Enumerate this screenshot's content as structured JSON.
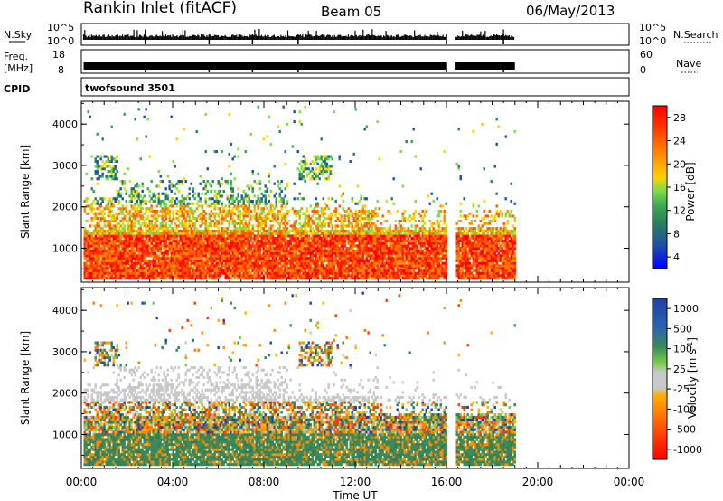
{
  "header": {
    "station": "Rankin Inlet (fitACF)",
    "beam": "Beam 05",
    "date": "06/May/2013"
  },
  "top_panels": {
    "nsky_label": "N.Sky",
    "nsky_ticks": [
      "10^5",
      "10^0"
    ],
    "nsearch_label": "N.Search",
    "nsearch_ticks": [
      "10^5",
      "10^0"
    ],
    "freq_label_1": "Freq.",
    "freq_label_2": "[MHz]",
    "freq_ticks": [
      "18",
      "8"
    ],
    "nave_label": "Nave",
    "nave_ticks": [
      "60",
      "0"
    ],
    "cpid_label": "CPID",
    "cpid_value": "twofsound 3501"
  },
  "chart_data": [
    {
      "type": "heatmap",
      "title": "Power",
      "xlabel": "Time UT",
      "ylabel": "Slant Range [km]",
      "x_ticks": [
        "00:00",
        "04:00",
        "08:00",
        "12:00",
        "16:00",
        "20:00",
        "00:00"
      ],
      "xlim_hours": [
        0,
        24
      ],
      "y_ticks": [
        "1000",
        "2000",
        "3000",
        "4000"
      ],
      "ylim": [
        180,
        4550
      ],
      "colorbar_label": "Power [dB]",
      "colorbar_ticks": [
        "28",
        "24",
        "20",
        "16",
        "12",
        "8",
        "4"
      ],
      "colorbar_colors": [
        "#ff0000",
        "#ff4500",
        "#ff8c00",
        "#ffd700",
        "#7fdc4a",
        "#3aa655",
        "#2e7d5b",
        "#1e4ea8",
        "#0000ff"
      ],
      "data_coverage_hours": [
        0.1,
        19.0
      ]
    },
    {
      "type": "heatmap",
      "title": "Velocity",
      "xlabel": "Time UT",
      "ylabel": "Slant Range [km]",
      "x_ticks": [
        "00:00",
        "04:00",
        "08:00",
        "12:00",
        "16:00",
        "20:00",
        "00:00"
      ],
      "xlim_hours": [
        0,
        24
      ],
      "y_ticks": [
        "1000",
        "2000",
        "3000",
        "4000"
      ],
      "ylim": [
        180,
        4550
      ],
      "colorbar_label": "Velocity [m s",
      "colorbar_label_sup": "-1",
      "colorbar_label_end": "]",
      "colorbar_ticks": [
        "1000",
        "500",
        "100",
        "25",
        "-25",
        "-100",
        "-500",
        "-1000"
      ],
      "colorbar_colors": [
        "#1f3fa8",
        "#2e62b0",
        "#3a8a5a",
        "#78cc4a",
        "#c8c8c8",
        "#ffb000",
        "#ff7a00",
        "#ff3c00",
        "#ff0000"
      ],
      "data_coverage_hours": [
        0.1,
        19.0
      ]
    }
  ]
}
